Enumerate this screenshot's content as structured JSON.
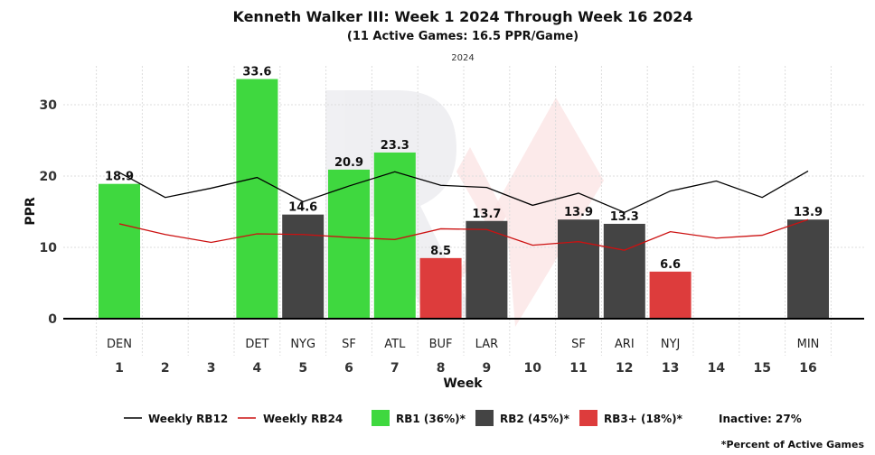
{
  "chart_data": {
    "type": "bar",
    "title": "Kenneth Walker III: Week 1 2024 Through Week 16 2024",
    "subtitle": "(11 Active Games: 16.5 PPR/Game)",
    "season_label": "2024",
    "xlabel": "Week",
    "ylabel": "PPR",
    "ylim": [
      -2,
      37
    ],
    "yticks": [
      0,
      10,
      20,
      30
    ],
    "grid": true,
    "weeks": [
      1,
      2,
      3,
      4,
      5,
      6,
      7,
      8,
      9,
      10,
      11,
      12,
      13,
      14,
      15,
      16
    ],
    "opponents": [
      "DEN",
      "",
      "",
      "DET",
      "NYG",
      "SF",
      "ATL",
      "BUF",
      "LAR",
      "",
      "SF",
      "ARI",
      "NYJ",
      "",
      "",
      "MIN"
    ],
    "values": [
      18.9,
      null,
      null,
      33.6,
      14.6,
      20.9,
      23.3,
      8.5,
      13.7,
      null,
      13.9,
      13.3,
      6.6,
      null,
      null,
      13.9
    ],
    "value_labels": [
      "18.9",
      "",
      "",
      "33.6",
      "14.6",
      "20.9",
      "23.3",
      "8.5",
      "13.7",
      "",
      "13.9",
      "13.3",
      "6.6",
      "",
      "",
      "13.9"
    ],
    "tiers": [
      "RB1",
      null,
      null,
      "RB1",
      "RB2",
      "RB1",
      "RB1",
      "RB3+",
      "RB2",
      null,
      "RB2",
      "RB2",
      "RB3+",
      null,
      null,
      "RB2"
    ],
    "tier_colors": {
      "RB1": "#3fd83f",
      "RB2": "#444444",
      "RB3+": "#dd3c3c"
    },
    "series": [
      {
        "name": "Weekly RB12",
        "color": "#000000",
        "values": [
          20.5,
          17.0,
          18.3,
          19.8,
          16.4,
          18.6,
          20.6,
          18.7,
          18.4,
          15.9,
          17.6,
          14.9,
          17.9,
          19.3,
          17.0,
          20.7
        ]
      },
      {
        "name": "Weekly RB24",
        "color": "#cc1111",
        "values": [
          13.3,
          11.8,
          10.7,
          11.9,
          11.8,
          11.4,
          11.1,
          12.6,
          12.5,
          10.3,
          10.8,
          9.6,
          12.2,
          11.3,
          11.7,
          13.9
        ]
      }
    ],
    "legend": {
      "placement": "bottom",
      "lines": [
        {
          "label": "Weekly RB12",
          "color": "#000000"
        },
        {
          "label": "Weekly RB24",
          "color": "#cc1111"
        }
      ],
      "boxes": [
        {
          "label": "RB1 (36%)*",
          "color": "#3fd83f"
        },
        {
          "label": "RB2 (45%)*",
          "color": "#444444"
        },
        {
          "label": "RB3+ (18%)*",
          "color": "#dd3c3c"
        }
      ],
      "inactive": "Inactive: 27%"
    },
    "footnote": "*Percent of Active Games"
  }
}
